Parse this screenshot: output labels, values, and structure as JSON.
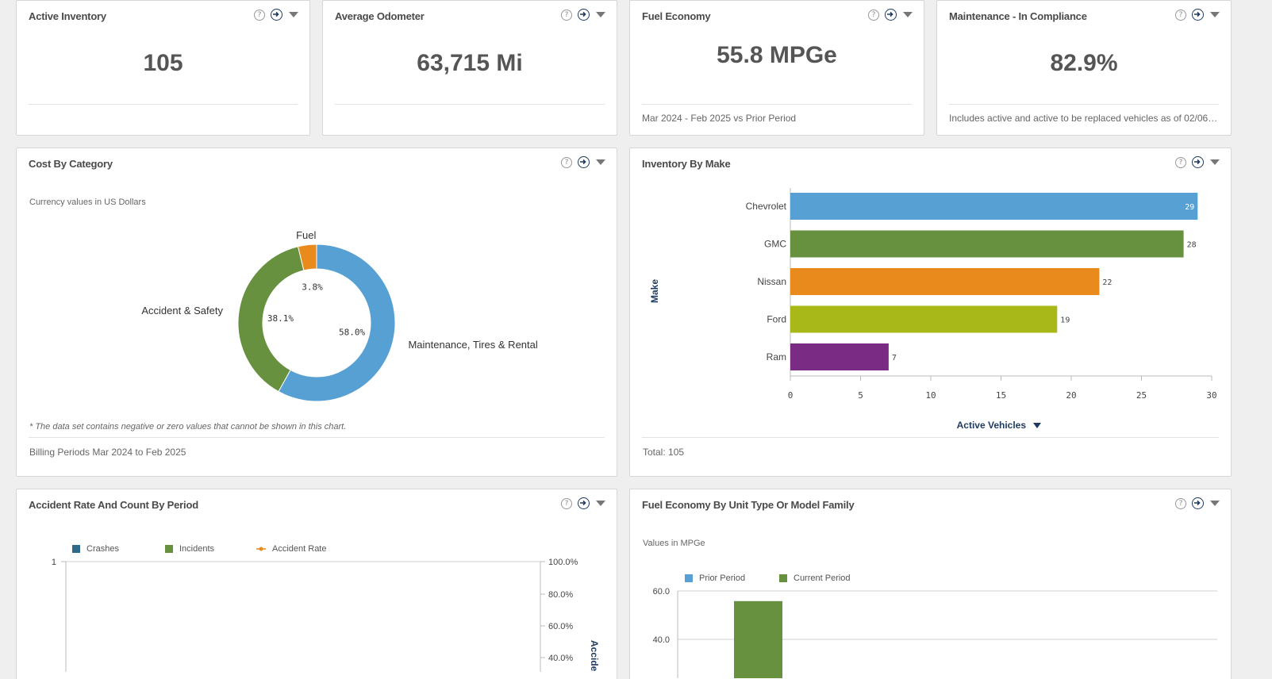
{
  "colors": {
    "blue": "#57a0d3",
    "green": "#67913f",
    "orange": "#e98a1c",
    "lime": "#a9b819",
    "purple": "#7a2b83",
    "navy": "#1f3a5f"
  },
  "icons": {
    "help": "?",
    "go": "arrow-right-circle",
    "menu": "caret-down"
  },
  "kpis": {
    "active_inventory": {
      "title": "Active Inventory",
      "value": "105",
      "footer": ""
    },
    "average_odometer": {
      "title": "Average Odometer",
      "value": "63,715 Mi",
      "footer": ""
    },
    "fuel_economy": {
      "title": "Fuel Economy",
      "value": "55.8 MPGe",
      "footer": "Mar 2024 - Feb 2025 vs Prior Period"
    },
    "maintenance": {
      "title": "Maintenance - In Compliance",
      "value": "82.9%",
      "footer": "Includes active and active to be replaced vehicles as of 02/06/20..."
    }
  },
  "cost_by_category": {
    "title": "Cost By Category",
    "subtitle": "Currency values in US Dollars",
    "note": "* The data set contains negative or zero values that cannot be shown in this chart.",
    "footer": "Billing Periods Mar 2024 to Feb 2025",
    "chart_data": {
      "type": "pie",
      "slices": [
        {
          "label": "Maintenance, Tires & Rental",
          "value": 58.0,
          "display": "58.0%",
          "color": "#57a0d3"
        },
        {
          "label": "Accident & Safety",
          "value": 38.1,
          "display": "38.1%",
          "color": "#67913f"
        },
        {
          "label": "Fuel",
          "value": 3.8,
          "display": "3.8%",
          "color": "#e98a1c"
        }
      ]
    }
  },
  "inventory_by_make": {
    "title": "Inventory By Make",
    "footer": "Total: 105",
    "chart_data": {
      "type": "bar",
      "orientation": "horizontal",
      "ylabel": "Make",
      "xlabel": "Active Vehicles",
      "xlim": [
        0,
        30
      ],
      "xticks": [
        0,
        5,
        10,
        15,
        20,
        25,
        30
      ],
      "categories": [
        "Chevrolet",
        "GMC",
        "Nissan",
        "Ford",
        "Ram"
      ],
      "values": [
        29,
        28,
        22,
        19,
        7
      ],
      "colors": [
        "#57a0d3",
        "#67913f",
        "#e98a1c",
        "#a9b819",
        "#7a2b83"
      ]
    }
  },
  "accident_rate": {
    "title": "Accident Rate And Count By Period",
    "chart_data": {
      "type": "bar",
      "series": [
        {
          "name": "Crashes",
          "color": "#2d6a8a"
        },
        {
          "name": "Incidents",
          "color": "#67913f"
        },
        {
          "name": "Accident Rate",
          "color": "#e98a1c"
        }
      ],
      "y_left_ticks": [
        "1"
      ],
      "y_right_ticks": [
        "100.0%",
        "80.0%",
        "60.0%",
        "40.0%"
      ],
      "y_right_label": "Accident Rate"
    }
  },
  "fuel_by_unit": {
    "title": "Fuel Economy By Unit Type Or Model Family",
    "subtitle": "Values in MPGe",
    "chart_data": {
      "type": "bar",
      "series": [
        {
          "name": "Prior Period",
          "color": "#57a0d3"
        },
        {
          "name": "Current Period",
          "color": "#67913f"
        }
      ],
      "y_ticks": [
        "60.0",
        "40.0"
      ],
      "ylim": [
        0,
        60
      ],
      "visible_bar": {
        "series": "Current Period",
        "value": 55.8
      }
    }
  }
}
